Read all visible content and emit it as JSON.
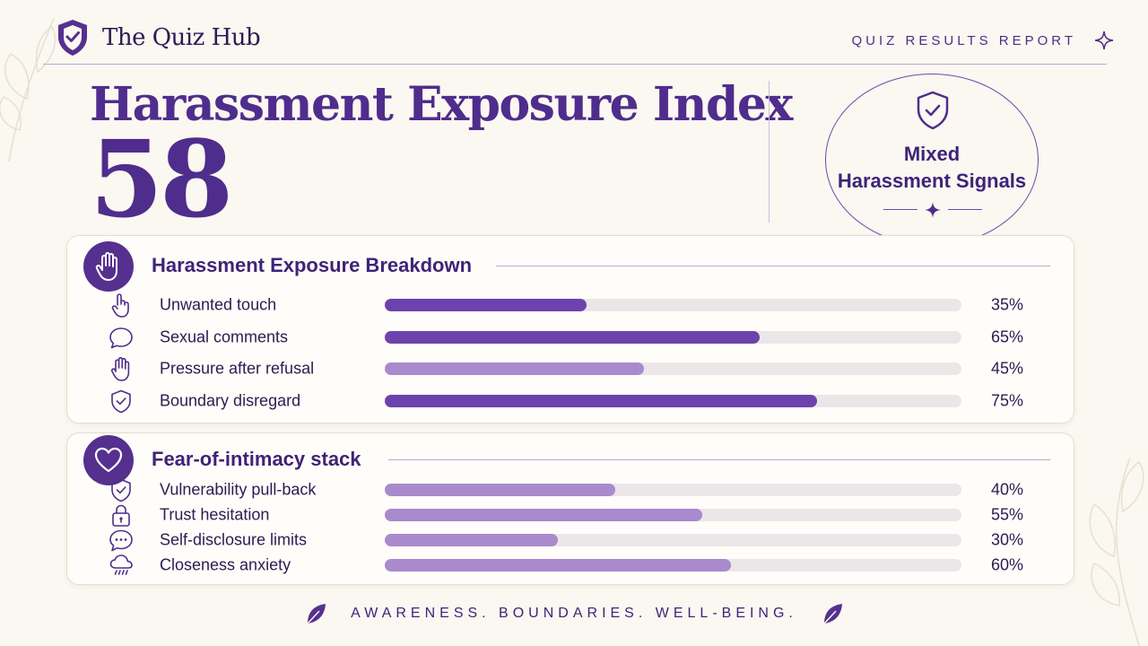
{
  "header": {
    "brand_name": "The Quiz Hub",
    "report_label": "QUIZ RESULTS REPORT"
  },
  "hero": {
    "title": "Harassment Exposure Index",
    "score": "58"
  },
  "badge": {
    "line1": "Mixed",
    "line2": "Harassment Signals"
  },
  "colors": {
    "accent": "#4f2d8c",
    "bar_dark": "#6c43ad",
    "bar_light": "#a98acd",
    "track": "#ebe6e8",
    "background": "#fbf7f1"
  },
  "breakdown": {
    "title": "Harassment Exposure Breakdown",
    "header_icon": "raised-hand-icon",
    "items": [
      {
        "label": "Unwanted touch",
        "value": 35,
        "pct": "35%",
        "icon": "pointing-hand-icon",
        "tone": "dark"
      },
      {
        "label": "Sexual comments",
        "value": 65,
        "pct": "65%",
        "icon": "speech-bubble-icon",
        "tone": "dark"
      },
      {
        "label": "Pressure after refusal",
        "value": 45,
        "pct": "45%",
        "icon": "raised-hand-icon",
        "tone": "light"
      },
      {
        "label": "Boundary disregard",
        "value": 75,
        "pct": "75%",
        "icon": "shield-check-icon",
        "tone": "dark"
      }
    ]
  },
  "intimacy": {
    "title": "Fear-of-intimacy stack",
    "header_icon": "heart-icon",
    "items": [
      {
        "label": "Vulnerability pull-back",
        "value": 40,
        "pct": "40%",
        "icon": "shield-check-icon",
        "tone": "light"
      },
      {
        "label": "Trust hesitation",
        "value": 55,
        "pct": "55%",
        "icon": "lock-icon",
        "tone": "light"
      },
      {
        "label": "Self-disclosure limits",
        "value": 30,
        "pct": "30%",
        "icon": "chat-dots-icon",
        "tone": "light"
      },
      {
        "label": "Closeness anxiety",
        "value": 60,
        "pct": "60%",
        "icon": "storm-cloud-icon",
        "tone": "light"
      }
    ]
  },
  "footer": {
    "motto": "AWARENESS. BOUNDARIES. WELL-BEING."
  }
}
